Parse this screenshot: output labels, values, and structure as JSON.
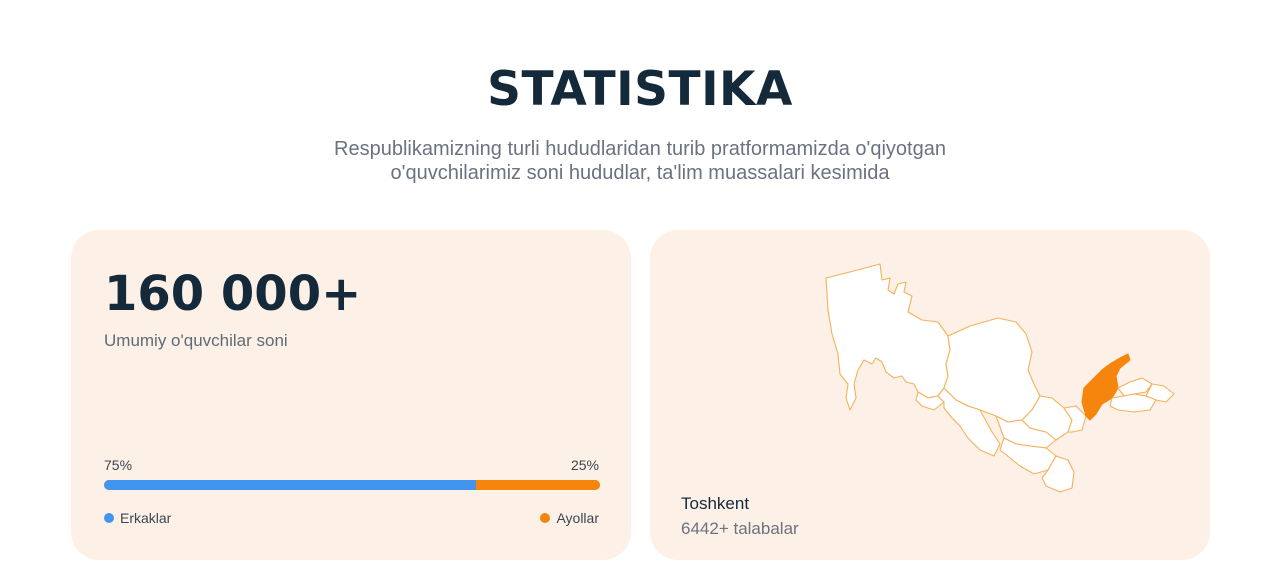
{
  "header": {
    "title": "STATISTIKA",
    "subtitle_line1": "Respublikamizning turli hududlaridan turib pratformamizda o'qiyotgan",
    "subtitle_line2": "o'quvchilarimiz soni hududlar, ta'lim muassalari kesimida"
  },
  "summary": {
    "total": "160 000+",
    "total_label": "Umumiy o'quvchilar soni",
    "male_percent_text": "75%",
    "female_percent_text": "25%",
    "male_fraction": 0.75,
    "female_fraction": 0.25,
    "male_label": "Erkaklar",
    "female_label": "Ayollar",
    "colors": {
      "male": "#4295ee",
      "female": "#f5850c"
    }
  },
  "map": {
    "selected_region": "Toshkent",
    "selected_count": "6442+ talabalar",
    "colors": {
      "highlight": "#f5850c",
      "fill": "#ffffff",
      "stroke": "#f6b05a"
    }
  }
}
